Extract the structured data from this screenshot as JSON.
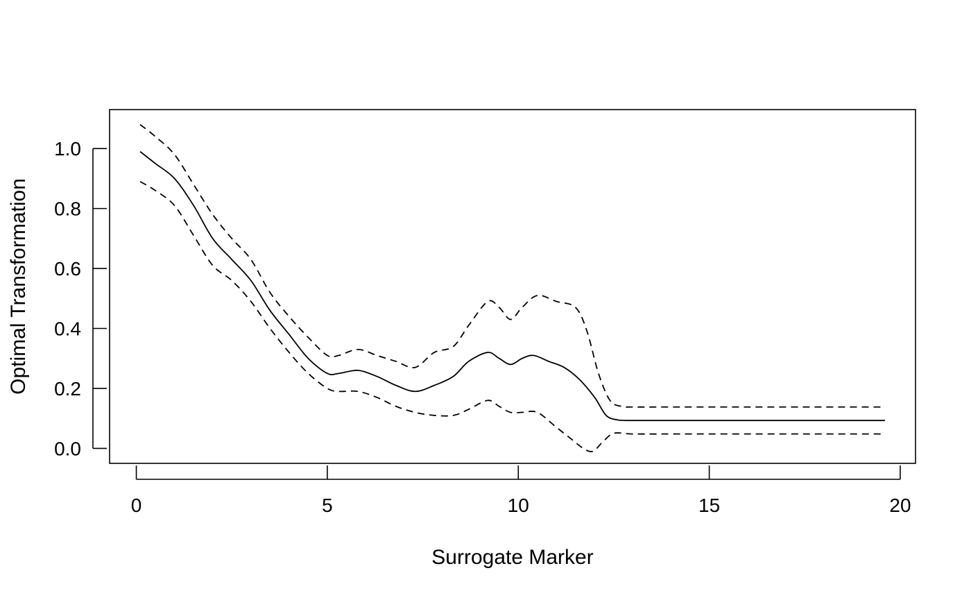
{
  "chart_data": {
    "type": "line",
    "title": "",
    "xlabel": "Surrogate Marker",
    "ylabel": "Optimal Transformation",
    "xlim": [
      -0.7,
      20.4
    ],
    "ylim": [
      -0.05,
      1.13
    ],
    "x_ticks": [
      0,
      5,
      10,
      15,
      20
    ],
    "x_tick_labels": [
      "0",
      "5",
      "10",
      "15",
      "20"
    ],
    "y_ticks": [
      0,
      0.2,
      0.4,
      0.6,
      0.8,
      1.0
    ],
    "y_tick_labels": [
      "0.0",
      "0.2",
      "0.4",
      "0.6",
      "0.8",
      "1.0"
    ],
    "grid": false,
    "legend": "none",
    "series": [
      {
        "style": "solid",
        "color": "#000000",
        "x": [
          0.1,
          0.5,
          1.0,
          1.5,
          2.0,
          2.5,
          3.0,
          3.5,
          4.0,
          4.5,
          5.0,
          5.3,
          5.8,
          6.3,
          6.8,
          7.3,
          7.8,
          8.3,
          8.7,
          9.2,
          9.5,
          9.8,
          10.1,
          10.4,
          10.8,
          11.2,
          11.6,
          12.0,
          12.3,
          12.6,
          13.0,
          14.0,
          16.0,
          18.0,
          19.6
        ],
        "y": [
          0.99,
          0.95,
          0.9,
          0.81,
          0.7,
          0.63,
          0.56,
          0.46,
          0.38,
          0.3,
          0.25,
          0.25,
          0.26,
          0.24,
          0.21,
          0.19,
          0.21,
          0.24,
          0.29,
          0.32,
          0.3,
          0.28,
          0.3,
          0.31,
          0.29,
          0.27,
          0.23,
          0.17,
          0.11,
          0.095,
          0.093,
          0.093,
          0.093,
          0.093,
          0.093
        ]
      },
      {
        "style": "dashed",
        "color": "#000000",
        "x": [
          0.1,
          0.5,
          1.0,
          1.5,
          2.0,
          2.5,
          3.0,
          3.5,
          4.0,
          4.5,
          5.0,
          5.3,
          5.8,
          6.3,
          6.8,
          7.3,
          7.8,
          8.3,
          8.7,
          9.2,
          9.5,
          9.8,
          10.1,
          10.5,
          11.0,
          11.5,
          11.8,
          12.1,
          12.4,
          12.7,
          13.0,
          14.0,
          16.0,
          18.0,
          19.6
        ],
        "y": [
          1.08,
          1.04,
          0.98,
          0.88,
          0.78,
          0.7,
          0.63,
          0.52,
          0.44,
          0.37,
          0.31,
          0.31,
          0.33,
          0.31,
          0.29,
          0.27,
          0.32,
          0.34,
          0.41,
          0.49,
          0.47,
          0.43,
          0.47,
          0.51,
          0.49,
          0.47,
          0.39,
          0.25,
          0.16,
          0.14,
          0.138,
          0.138,
          0.138,
          0.138,
          0.138
        ]
      },
      {
        "style": "dashed",
        "color": "#000000",
        "x": [
          0.1,
          0.5,
          1.0,
          1.5,
          2.0,
          2.5,
          3.0,
          3.5,
          4.0,
          4.5,
          5.0,
          5.3,
          5.8,
          6.3,
          6.8,
          7.3,
          7.8,
          8.3,
          8.7,
          9.2,
          9.5,
          9.8,
          10.1,
          10.5,
          11.0,
          11.4,
          11.7,
          11.95,
          12.2,
          12.5,
          13.0,
          14.0,
          16.0,
          18.0,
          19.6
        ],
        "y": [
          0.89,
          0.86,
          0.81,
          0.71,
          0.61,
          0.56,
          0.49,
          0.4,
          0.32,
          0.25,
          0.2,
          0.19,
          0.19,
          0.17,
          0.14,
          0.12,
          0.11,
          0.11,
          0.13,
          0.16,
          0.14,
          0.12,
          0.12,
          0.12,
          0.07,
          0.03,
          0.0,
          -0.01,
          0.02,
          0.05,
          0.048,
          0.048,
          0.048,
          0.048,
          0.048
        ]
      }
    ]
  }
}
